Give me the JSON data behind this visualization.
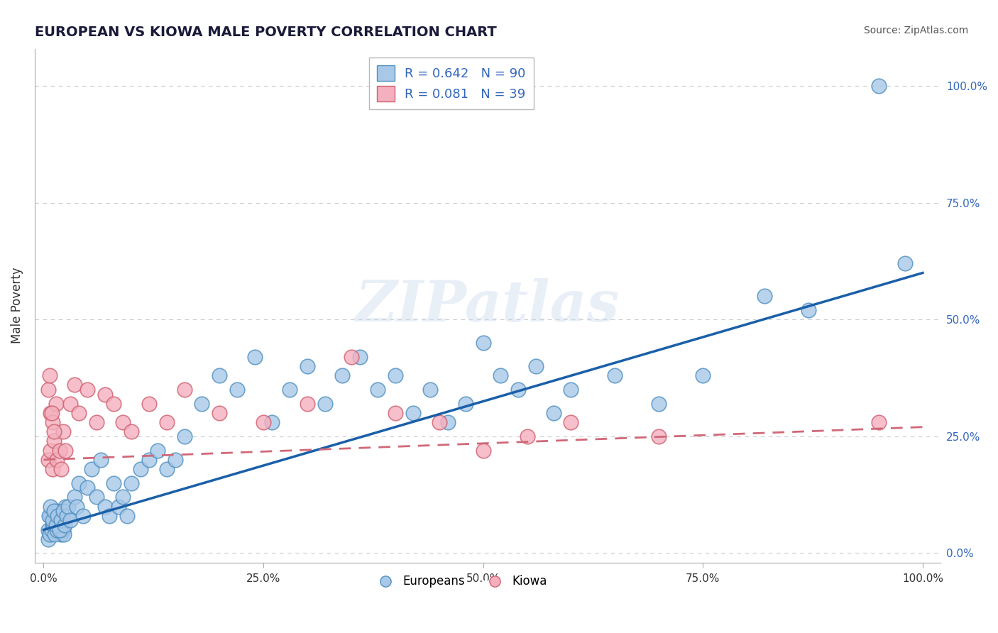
{
  "title": "EUROPEAN VS KIOWA MALE POVERTY CORRELATION CHART",
  "source": "Source: ZipAtlas.com",
  "ylabel": "Male Poverty",
  "xlim": [
    -0.01,
    1.02
  ],
  "ylim": [
    -0.02,
    1.08
  ],
  "x_ticks": [
    0.0,
    0.25,
    0.5,
    0.75,
    1.0
  ],
  "x_tick_labels": [
    "0.0%",
    "25.0%",
    "50.0%",
    "75.0%",
    "100.0%"
  ],
  "y_ticks": [
    0.0,
    0.25,
    0.5,
    0.75,
    1.0
  ],
  "y_tick_labels_right": [
    "0.0%",
    "25.0%",
    "50.0%",
    "75.0%",
    "100.0%"
  ],
  "europeans_color": "#a8c8e8",
  "europeans_edge": "#5090c0",
  "kiowa_color": "#f4b0be",
  "kiowa_edge": "#d06070",
  "trend_blue": "#1a5fa8",
  "trend_pink": "#d06878",
  "legend_label_blue": "R = 0.642   N = 90",
  "legend_label_pink": "R = 0.081   N = 39",
  "legend_text_color": "#3366bb",
  "background": "#ffffff",
  "grid_color": "#cccccc",
  "title_color": "#1a1a3a",
  "source_color": "#555555",
  "watermark": "ZIPatlas",
  "blue_line_x": [
    0.0,
    1.0
  ],
  "blue_line_y": [
    0.05,
    0.6
  ],
  "pink_line_x": [
    0.0,
    1.0
  ],
  "pink_line_y": [
    0.2,
    0.27
  ],
  "europeans_x": [
    0.005,
    0.008,
    0.01,
    0.012,
    0.015,
    0.018,
    0.02,
    0.022,
    0.025,
    0.008,
    0.01,
    0.012,
    0.014,
    0.016,
    0.018,
    0.02,
    0.022,
    0.005,
    0.007,
    0.009,
    0.011,
    0.013,
    0.015,
    0.017,
    0.019,
    0.021,
    0.023,
    0.006,
    0.008,
    0.01,
    0.012,
    0.014,
    0.016,
    0.018,
    0.02,
    0.022,
    0.024,
    0.026,
    0.028,
    0.03,
    0.035,
    0.038,
    0.04,
    0.045,
    0.05,
    0.055,
    0.06,
    0.065,
    0.07,
    0.075,
    0.08,
    0.085,
    0.09,
    0.095,
    0.1,
    0.11,
    0.12,
    0.13,
    0.14,
    0.15,
    0.16,
    0.18,
    0.2,
    0.22,
    0.24,
    0.26,
    0.28,
    0.3,
    0.32,
    0.34,
    0.36,
    0.38,
    0.4,
    0.42,
    0.44,
    0.46,
    0.48,
    0.5,
    0.52,
    0.54,
    0.56,
    0.58,
    0.6,
    0.65,
    0.7,
    0.75,
    0.82,
    0.87,
    0.95,
    0.98
  ],
  "europeans_y": [
    0.05,
    0.08,
    0.06,
    0.07,
    0.09,
    0.07,
    0.06,
    0.08,
    0.1,
    0.04,
    0.05,
    0.06,
    0.07,
    0.05,
    0.06,
    0.04,
    0.05,
    0.03,
    0.04,
    0.05,
    0.06,
    0.04,
    0.05,
    0.07,
    0.06,
    0.05,
    0.04,
    0.08,
    0.1,
    0.07,
    0.09,
    0.06,
    0.08,
    0.05,
    0.07,
    0.09,
    0.06,
    0.08,
    0.1,
    0.07,
    0.12,
    0.1,
    0.15,
    0.08,
    0.14,
    0.18,
    0.12,
    0.2,
    0.1,
    0.08,
    0.15,
    0.1,
    0.12,
    0.08,
    0.15,
    0.18,
    0.2,
    0.22,
    0.18,
    0.2,
    0.25,
    0.32,
    0.38,
    0.35,
    0.42,
    0.28,
    0.35,
    0.4,
    0.32,
    0.38,
    0.42,
    0.35,
    0.38,
    0.3,
    0.35,
    0.28,
    0.32,
    0.45,
    0.38,
    0.35,
    0.4,
    0.3,
    0.35,
    0.38,
    0.32,
    0.38,
    0.55,
    0.52,
    1.0,
    0.62
  ],
  "kiowa_x": [
    0.005,
    0.008,
    0.01,
    0.012,
    0.015,
    0.018,
    0.02,
    0.022,
    0.025,
    0.008,
    0.01,
    0.012,
    0.014,
    0.005,
    0.007,
    0.009,
    0.03,
    0.035,
    0.04,
    0.05,
    0.06,
    0.07,
    0.08,
    0.09,
    0.1,
    0.12,
    0.14,
    0.16,
    0.2,
    0.25,
    0.3,
    0.35,
    0.4,
    0.45,
    0.5,
    0.55,
    0.6,
    0.7,
    0.95
  ],
  "kiowa_y": [
    0.2,
    0.22,
    0.18,
    0.24,
    0.2,
    0.22,
    0.18,
    0.26,
    0.22,
    0.3,
    0.28,
    0.26,
    0.32,
    0.35,
    0.38,
    0.3,
    0.32,
    0.36,
    0.3,
    0.35,
    0.28,
    0.34,
    0.32,
    0.28,
    0.26,
    0.32,
    0.28,
    0.35,
    0.3,
    0.28,
    0.32,
    0.42,
    0.3,
    0.28,
    0.22,
    0.25,
    0.28,
    0.25,
    0.28
  ]
}
